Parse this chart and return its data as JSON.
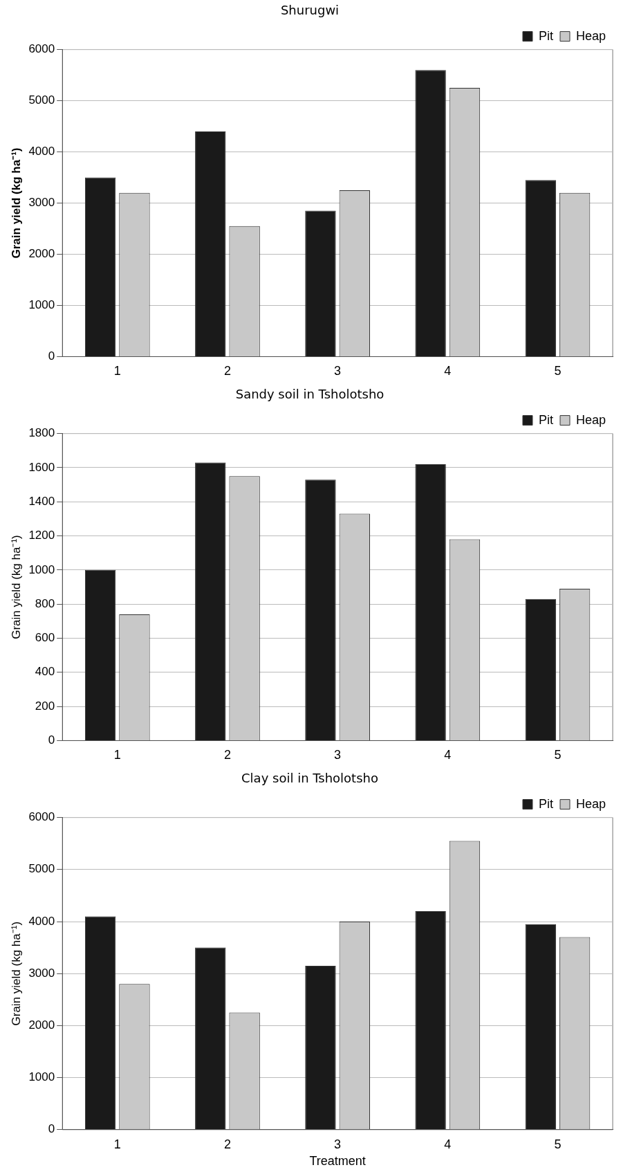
{
  "chart_data": [
    {
      "type": "bar",
      "title": "Shurugwi",
      "ylabel": "Grain yield (kg ha⁻¹)",
      "categories": [
        "1",
        "2",
        "3",
        "4",
        "5"
      ],
      "series": [
        {
          "name": "Pit",
          "color": "#1a1a1a",
          "values": [
            3500,
            4400,
            2850,
            5600,
            3450
          ]
        },
        {
          "name": "Heap",
          "color": "#c8c8c8",
          "values": [
            3200,
            2550,
            3250,
            5250,
            3200
          ]
        }
      ],
      "ylim": [
        0,
        6000
      ],
      "yticks": [
        0,
        1000,
        2000,
        3000,
        4000,
        5000,
        6000
      ],
      "grid": "y",
      "legend": "top right"
    },
    {
      "type": "bar",
      "title": "Sandy soil in Tsholotsho",
      "ylabel": "Grain yield (kg ha⁻¹)",
      "categories": [
        "1",
        "2",
        "3",
        "4",
        "5"
      ],
      "series": [
        {
          "name": "Pit",
          "color": "#1a1a1a",
          "values": [
            1000,
            1630,
            1530,
            1620,
            830
          ]
        },
        {
          "name": "Heap",
          "color": "#c8c8c8",
          "values": [
            740,
            1550,
            1330,
            1180,
            890
          ]
        }
      ],
      "ylim": [
        0,
        1800
      ],
      "yticks": [
        0,
        200,
        400,
        600,
        800,
        1000,
        1200,
        1400,
        1600,
        1800
      ],
      "grid": "y",
      "legend": "top right"
    },
    {
      "type": "bar",
      "title": "Clay soil in Tsholotsho",
      "xlabel": "Treatment",
      "ylabel": "Grain yield (kg ha⁻¹)",
      "categories": [
        "1",
        "2",
        "3",
        "4",
        "5"
      ],
      "series": [
        {
          "name": "Pit",
          "color": "#1a1a1a",
          "values": [
            4100,
            3500,
            3150,
            4200,
            3950
          ]
        },
        {
          "name": "Heap",
          "color": "#c8c8c8",
          "values": [
            2800,
            2250,
            4000,
            5550,
            3700
          ]
        }
      ],
      "ylim": [
        0,
        6000
      ],
      "yticks": [
        0,
        1000,
        2000,
        3000,
        4000,
        5000,
        6000
      ],
      "grid": "y",
      "legend": "top right"
    }
  ]
}
